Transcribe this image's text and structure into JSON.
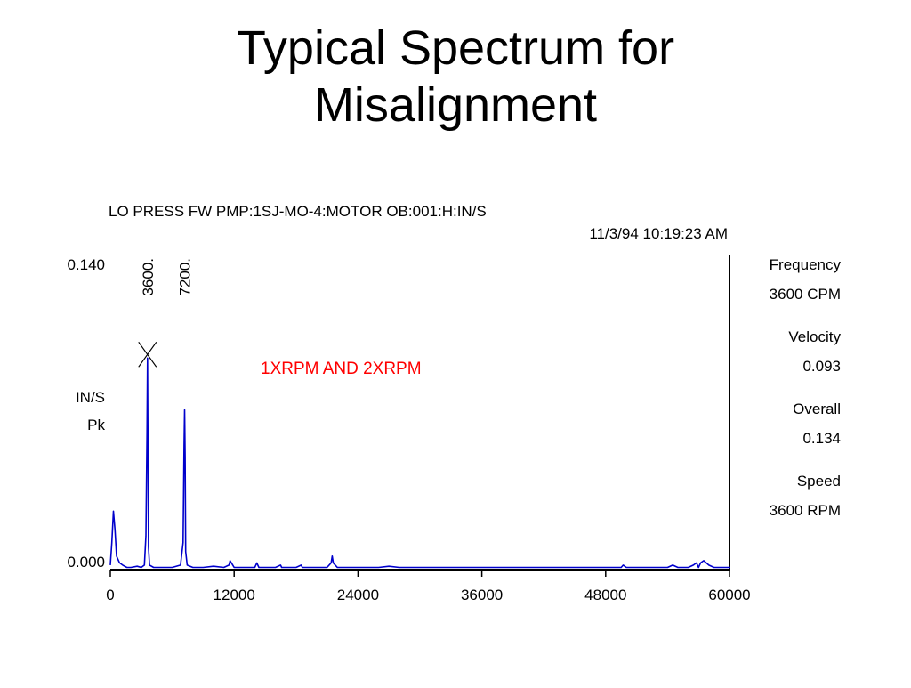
{
  "slide": {
    "title_line1": "Typical Spectrum for",
    "title_line2": "Misalignment"
  },
  "chart_data": {
    "type": "line",
    "title": "LO PRESS FW PMP:1SJ-MO-4:MOTOR OB:001:H:IN/S",
    "timestamp": "11/3/94 10:19:23 AM",
    "ylabel_line1": "IN/S",
    "ylabel_line2": "Pk",
    "xlim": [
      0,
      60000
    ],
    "ylim": [
      0,
      0.14
    ],
    "x_ticks": [
      0,
      12000,
      24000,
      36000,
      48000,
      60000
    ],
    "x_tick_labels": [
      "0",
      "12000",
      "24000",
      "36000",
      "48000",
      "60000"
    ],
    "y_tick_labels": [
      "0.140",
      "0.000"
    ],
    "annotation": "1XRPM AND 2XRPM",
    "annotation_color": "#ff0000",
    "series_color": "#0000cc",
    "peak_labels": [
      {
        "x": 3600,
        "label": "3600."
      },
      {
        "x": 7200,
        "label": "7200."
      }
    ],
    "cursor_marker_x": 3600,
    "series": [
      {
        "x": [
          0,
          150,
          300,
          450,
          600,
          900,
          1200,
          1600,
          2000,
          2600,
          3000,
          3300,
          3450,
          3550,
          3600,
          3650,
          3700,
          3800,
          4200,
          5000,
          6000,
          6800,
          7050,
          7150,
          7200,
          7250,
          7300,
          7450,
          8000,
          9000,
          10000,
          11000,
          11500,
          11600,
          12000,
          13000,
          14000,
          14200,
          14400,
          15000,
          16000,
          16500,
          16600,
          17000,
          18000,
          18500,
          18600,
          19000,
          20000,
          21000,
          21400,
          21500,
          21600,
          21800,
          22000,
          23000,
          24000,
          24100,
          25000,
          26000,
          27000,
          28000,
          29000,
          30000,
          31000,
          32000,
          33000,
          34000,
          35000,
          36000,
          37000,
          38000,
          39000,
          40000,
          41000,
          42000,
          43000,
          44000,
          45000,
          46000,
          47000,
          48000,
          49000,
          49500,
          49700,
          50000,
          51000,
          52000,
          53000,
          54000,
          54500,
          55000,
          56000,
          56500,
          56800,
          57000,
          57200,
          57500,
          58000,
          58500,
          59000,
          60000
        ],
        "y": [
          0.002,
          0.012,
          0.026,
          0.018,
          0.006,
          0.003,
          0.002,
          0.001,
          0.001,
          0.0015,
          0.001,
          0.002,
          0.015,
          0.06,
          0.094,
          0.055,
          0.01,
          0.002,
          0.001,
          0.001,
          0.001,
          0.002,
          0.012,
          0.055,
          0.071,
          0.05,
          0.008,
          0.002,
          0.001,
          0.001,
          0.0015,
          0.001,
          0.002,
          0.004,
          0.001,
          0.001,
          0.001,
          0.003,
          0.001,
          0.001,
          0.001,
          0.002,
          0.001,
          0.001,
          0.001,
          0.002,
          0.001,
          0.001,
          0.001,
          0.001,
          0.003,
          0.006,
          0.003,
          0.002,
          0.001,
          0.001,
          0.001,
          0.001,
          0.001,
          0.001,
          0.0015,
          0.001,
          0.001,
          0.001,
          0.001,
          0.001,
          0.001,
          0.001,
          0.001,
          0.001,
          0.001,
          0.001,
          0.001,
          0.001,
          0.001,
          0.001,
          0.001,
          0.001,
          0.001,
          0.001,
          0.001,
          0.001,
          0.001,
          0.001,
          0.002,
          0.001,
          0.001,
          0.001,
          0.001,
          0.001,
          0.002,
          0.001,
          0.001,
          0.002,
          0.003,
          0.001,
          0.003,
          0.004,
          0.002,
          0.001,
          0.001,
          0.001
        ]
      }
    ]
  },
  "readouts": [
    {
      "label": "Frequency",
      "value": "3600 CPM"
    },
    {
      "label": "Velocity",
      "value": "0.093"
    },
    {
      "label": "Overall",
      "value": "0.134"
    },
    {
      "label": "Speed",
      "value": "3600 RPM"
    }
  ]
}
